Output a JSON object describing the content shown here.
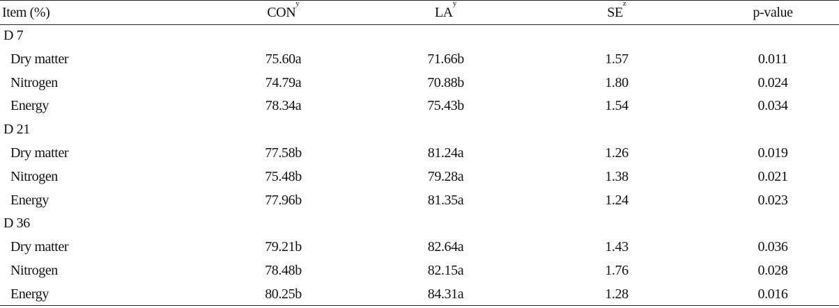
{
  "table": {
    "headers": {
      "item": "Item (%)",
      "con": "CON",
      "con_sup": "y",
      "la": "LA",
      "la_sup": "y",
      "se": "SE",
      "se_sup": "z",
      "pvalue": "p-value"
    },
    "groups": [
      {
        "label": "D 7",
        "rows": [
          {
            "item": "Dry matter",
            "con": "75.60a",
            "la": "71.66b",
            "se": "1.57",
            "p": "0.011"
          },
          {
            "item": "Nitrogen",
            "con": "74.79a",
            "la": "70.88b",
            "se": "1.80",
            "p": "0.024"
          },
          {
            "item": "Energy",
            "con": "78.34a",
            "la": "75.43b",
            "se": "1.54",
            "p": "0.034"
          }
        ]
      },
      {
        "label": "D 21",
        "rows": [
          {
            "item": "Dry matter",
            "con": "77.58b",
            "la": "81.24a",
            "se": "1.26",
            "p": "0.019"
          },
          {
            "item": "Nitrogen",
            "con": "75.48b",
            "la": "79.28a",
            "se": "1.38",
            "p": "0.021"
          },
          {
            "item": "Energy",
            "con": "77.96b",
            "la": "81.35a",
            "se": "1.24",
            "p": "0.023"
          }
        ]
      },
      {
        "label": "D 36",
        "rows": [
          {
            "item": "Dry matter",
            "con": "79.21b",
            "la": "82.64a",
            "se": "1.43",
            "p": "0.036"
          },
          {
            "item": "Nitrogen",
            "con": "78.48b",
            "la": "82.15a",
            "se": "1.76",
            "p": "0.028"
          },
          {
            "item": "Energy",
            "con": "80.25b",
            "la": "84.31a",
            "se": "1.28",
            "p": "0.016"
          }
        ]
      }
    ]
  }
}
